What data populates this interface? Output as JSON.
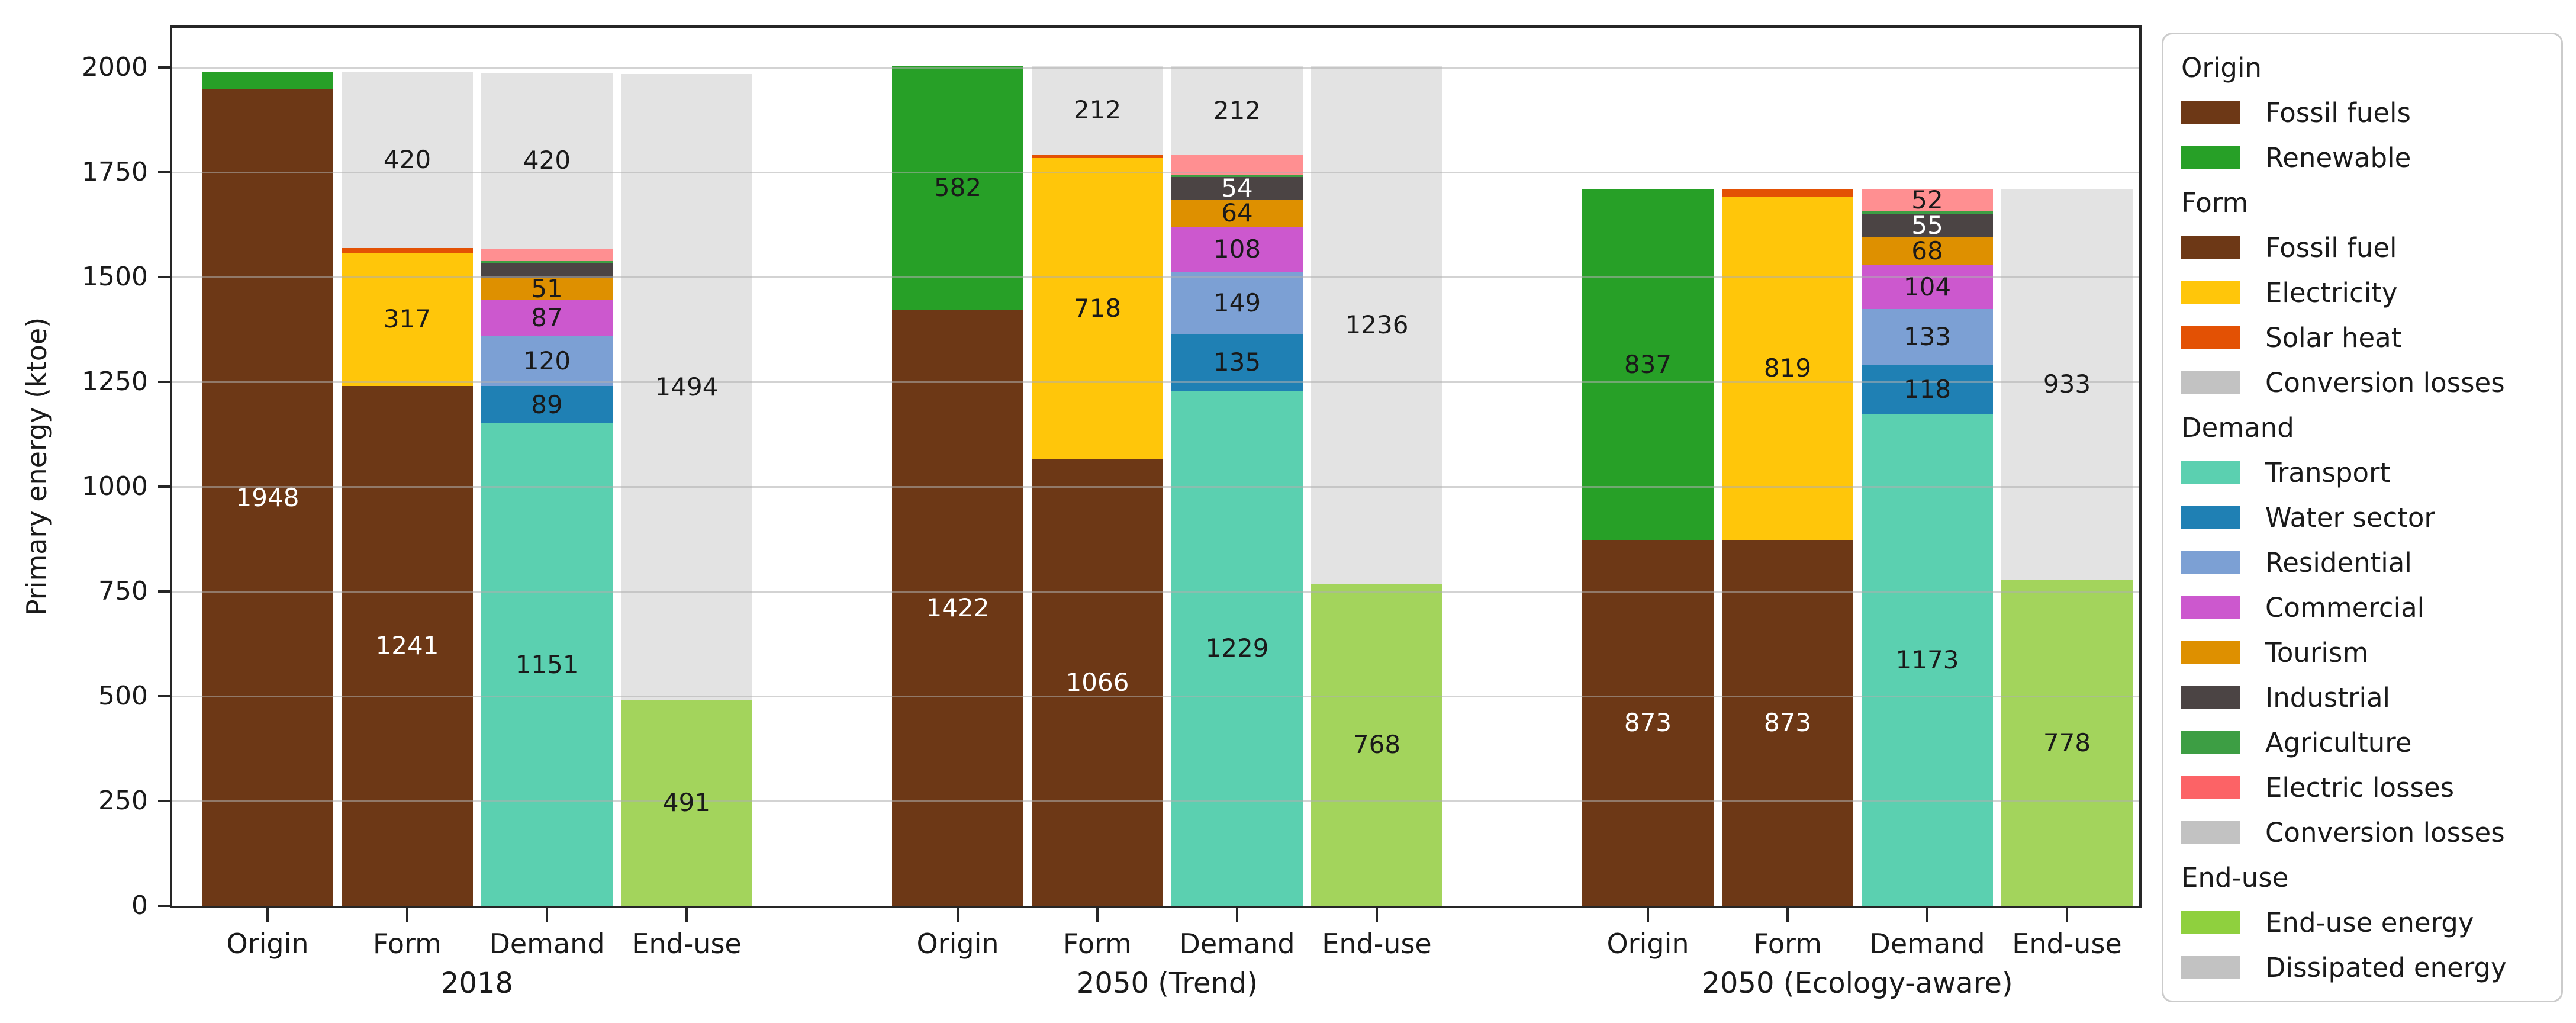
{
  "chart_data": {
    "type": "bar",
    "subtype": "stacked-grouped",
    "title": "",
    "xlabel": "",
    "ylabel": "Primary energy (ktoe)",
    "ylim": [
      0,
      2095
    ],
    "yticks": [
      0,
      250,
      500,
      750,
      1000,
      1250,
      1500,
      1750,
      2000
    ],
    "grid": true,
    "legend_position": "right-outside",
    "bar_categories": [
      "Origin",
      "Form",
      "Demand",
      "End-use"
    ],
    "groups": [
      {
        "label": "2018",
        "bars": [
          {
            "category": "Origin",
            "segments": [
              {
                "series": "Fossil fuels",
                "value": 1948,
                "label": "1948"
              },
              {
                "series": "Renewable",
                "value": 42
              }
            ]
          },
          {
            "category": "Form",
            "segments": [
              {
                "series": "Fossil fuel",
                "value": 1241,
                "label": "1241"
              },
              {
                "series": "Electricity",
                "value": 317,
                "label": "317"
              },
              {
                "series": "Solar heat",
                "value": 12
              },
              {
                "series": "Conversion losses",
                "value": 420,
                "label": "420"
              }
            ]
          },
          {
            "category": "Demand",
            "segments": [
              {
                "series": "Transport",
                "value": 1151,
                "label": "1151"
              },
              {
                "series": "Water sector",
                "value": 89,
                "label": "89"
              },
              {
                "series": "Residential",
                "value": 120,
                "label": "120"
              },
              {
                "series": "Commercial",
                "value": 87,
                "label": "87"
              },
              {
                "series": "Tourism",
                "value": 51,
                "label": "51"
              },
              {
                "series": "Industrial",
                "value": 35
              },
              {
                "series": "Agriculture",
                "value": 5
              },
              {
                "series": "Electric losses",
                "value": 30
              },
              {
                "series": "Conversion losses",
                "value": 420,
                "label": "420"
              }
            ]
          },
          {
            "category": "End-use",
            "segments": [
              {
                "series": "End-use energy",
                "value": 491,
                "label": "491"
              },
              {
                "series": "Dissipated energy",
                "value": 1494,
                "label": "1494"
              }
            ]
          }
        ]
      },
      {
        "label": "2050 (Trend)",
        "bars": [
          {
            "category": "Origin",
            "segments": [
              {
                "series": "Fossil fuels",
                "value": 1422,
                "label": "1422"
              },
              {
                "series": "Renewable",
                "value": 582,
                "label": "582"
              }
            ]
          },
          {
            "category": "Form",
            "segments": [
              {
                "series": "Fossil fuel",
                "value": 1066,
                "label": "1066"
              },
              {
                "series": "Electricity",
                "value": 718,
                "label": "718"
              },
              {
                "series": "Solar heat",
                "value": 8
              },
              {
                "series": "Conversion losses",
                "value": 212,
                "label": "212"
              }
            ]
          },
          {
            "category": "Demand",
            "segments": [
              {
                "series": "Transport",
                "value": 1229,
                "label": "1229"
              },
              {
                "series": "Water sector",
                "value": 135,
                "label": "135"
              },
              {
                "series": "Residential",
                "value": 149,
                "label": "149"
              },
              {
                "series": "Commercial",
                "value": 108,
                "label": "108"
              },
              {
                "series": "Tourism",
                "value": 64,
                "label": "64"
              },
              {
                "series": "Industrial",
                "value": 54,
                "label": "54"
              },
              {
                "series": "Agriculture",
                "value": 5
              },
              {
                "series": "Electric losses",
                "value": 48
              },
              {
                "series": "Conversion losses",
                "value": 212,
                "label": "212"
              }
            ]
          },
          {
            "category": "End-use",
            "segments": [
              {
                "series": "End-use energy",
                "value": 768,
                "label": "768"
              },
              {
                "series": "Dissipated energy",
                "value": 1236,
                "label": "1236"
              }
            ]
          }
        ]
      },
      {
        "label": "2050 (Ecology-aware)",
        "bars": [
          {
            "category": "Origin",
            "segments": [
              {
                "series": "Fossil fuels",
                "value": 873,
                "label": "873"
              },
              {
                "series": "Renewable",
                "value": 837,
                "label": "837"
              }
            ]
          },
          {
            "category": "Form",
            "segments": [
              {
                "series": "Fossil fuel",
                "value": 873,
                "label": "873"
              },
              {
                "series": "Electricity",
                "value": 819,
                "label": "819"
              },
              {
                "series": "Solar heat",
                "value": 18
              }
            ]
          },
          {
            "category": "Demand",
            "segments": [
              {
                "series": "Transport",
                "value": 1173,
                "label": "1173"
              },
              {
                "series": "Water sector",
                "value": 118,
                "label": "118"
              },
              {
                "series": "Residential",
                "value": 133,
                "label": "133"
              },
              {
                "series": "Commercial",
                "value": 104,
                "label": "104"
              },
              {
                "series": "Tourism",
                "value": 68,
                "label": "68"
              },
              {
                "series": "Industrial",
                "value": 55,
                "label": "55"
              },
              {
                "series": "Agriculture",
                "value": 7
              },
              {
                "series": "Electric losses",
                "value": 52,
                "label": "52"
              }
            ]
          },
          {
            "category": "End-use",
            "segments": [
              {
                "series": "End-use energy",
                "value": 778,
                "label": "778"
              },
              {
                "series": "Dissipated energy",
                "value": 933,
                "label": "933"
              }
            ]
          }
        ]
      }
    ],
    "series_styles": {
      "Fossil fuels": {
        "bar_color": "#6D3816",
        "legend_color": "#6D3816",
        "label_color": "#FFFFFF"
      },
      "Fossil fuel": {
        "bar_color": "#6D3816",
        "legend_color": "#6D3816",
        "label_color": "#FFFFFF"
      },
      "Renewable": {
        "bar_color": "#27A027",
        "legend_color": "#27A027",
        "label_color": "#1a1a1a"
      },
      "Electricity": {
        "bar_color": "#FFC60A",
        "legend_color": "#FFC60A",
        "label_color": "#1a1a1a"
      },
      "Solar heat": {
        "bar_color": "#E35104",
        "legend_color": "#E35104",
        "label_color": "#1a1a1a"
      },
      "Conversion losses": {
        "bar_color": "#E3E3E3",
        "legend_color": "#C2C2C2",
        "label_color": "#1a1a1a"
      },
      "Transport": {
        "bar_color": "#5BD0B0",
        "legend_color": "#5BD0B0",
        "label_color": "#1a1a1a"
      },
      "Water sector": {
        "bar_color": "#1F80B4",
        "legend_color": "#1F80B4",
        "label_color": "#1a1a1a"
      },
      "Residential": {
        "bar_color": "#7CA0D4",
        "legend_color": "#7CA0D4",
        "label_color": "#1a1a1a"
      },
      "Commercial": {
        "bar_color": "#CC58CE",
        "legend_color": "#CC58CE",
        "label_color": "#1a1a1a"
      },
      "Tourism": {
        "bar_color": "#DE9000",
        "legend_color": "#DE9000",
        "label_color": "#1a1a1a"
      },
      "Industrial": {
        "bar_color": "#4B4444",
        "legend_color": "#4B4444",
        "label_color": "#FFFFFF"
      },
      "Agriculture": {
        "bar_color": "#3D9E44",
        "legend_color": "#3D9E44",
        "label_color": "#1a1a1a"
      },
      "Electric losses": {
        "bar_color": "#FF8F91",
        "legend_color": "#FC6366",
        "label_color": "#1a1a1a"
      },
      "End-use energy": {
        "bar_color": "#A3D45C",
        "legend_color": "#8FD03E",
        "label_color": "#1a1a1a"
      },
      "Dissipated energy": {
        "bar_color": "#E3E3E3",
        "legend_color": "#C2C2C2",
        "label_color": "#1a1a1a"
      }
    }
  },
  "legend": {
    "sections": [
      {
        "header": "Origin",
        "items": [
          {
            "label": "Fossil fuels",
            "color": "#6D3816"
          },
          {
            "label": "Renewable",
            "color": "#27A027"
          }
        ]
      },
      {
        "header": "Form",
        "items": [
          {
            "label": "Fossil fuel",
            "color": "#6D3816"
          },
          {
            "label": "Electricity",
            "color": "#FFC60A"
          },
          {
            "label": "Solar heat",
            "color": "#E35104"
          },
          {
            "label": "Conversion losses",
            "color": "#C2C2C2"
          }
        ]
      },
      {
        "header": "Demand",
        "items": [
          {
            "label": "Transport",
            "color": "#5BD0B0"
          },
          {
            "label": "Water sector",
            "color": "#1F80B4"
          },
          {
            "label": "Residential",
            "color": "#7CA0D4"
          },
          {
            "label": "Commercial",
            "color": "#CC58CE"
          },
          {
            "label": "Tourism",
            "color": "#DE9000"
          },
          {
            "label": "Industrial",
            "color": "#4B4444"
          },
          {
            "label": "Agriculture",
            "color": "#3D9E44"
          },
          {
            "label": "Electric losses",
            "color": "#FC6366"
          },
          {
            "label": "Conversion losses",
            "color": "#C2C2C2"
          }
        ]
      },
      {
        "header": "End-use",
        "items": [
          {
            "label": "End-use energy",
            "color": "#8FD03E"
          },
          {
            "label": "Dissipated energy",
            "color": "#C2C2C2"
          }
        ]
      }
    ]
  }
}
